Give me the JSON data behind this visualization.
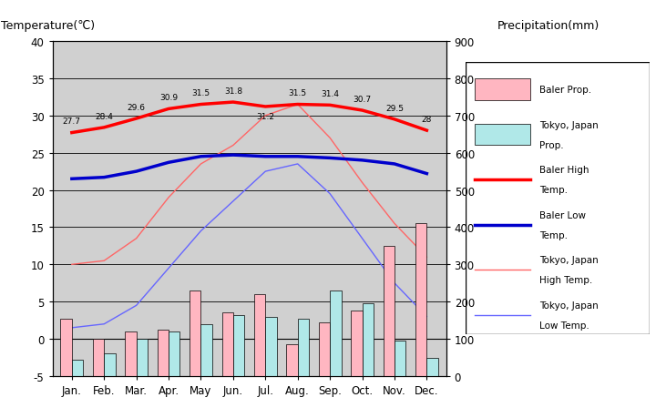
{
  "months": [
    "Jan.",
    "Feb.",
    "Mar.",
    "Apr.",
    "May",
    "Jun.",
    "Jul.",
    "Aug.",
    "Sep.",
    "Oct.",
    "Nov.",
    "Dec."
  ],
  "month_positions": [
    0,
    1,
    2,
    3,
    4,
    5,
    6,
    7,
    8,
    9,
    10,
    11
  ],
  "baler_high_temp": [
    27.7,
    28.4,
    29.6,
    30.9,
    31.5,
    31.8,
    31.2,
    31.5,
    31.4,
    30.7,
    29.5,
    28.0
  ],
  "baler_low_temp": [
    21.5,
    21.7,
    22.5,
    23.7,
    24.5,
    24.7,
    24.5,
    24.5,
    24.3,
    24.0,
    23.5,
    22.2
  ],
  "tokyo_high_temp": [
    10.0,
    10.5,
    13.5,
    19.0,
    23.5,
    26.0,
    30.0,
    31.5,
    27.0,
    21.0,
    15.5,
    11.0
  ],
  "tokyo_low_temp": [
    1.5,
    2.0,
    4.5,
    9.5,
    14.5,
    18.5,
    22.5,
    23.5,
    19.5,
    13.5,
    7.5,
    3.0
  ],
  "baler_precip": [
    155,
    100,
    120,
    125,
    230,
    170,
    220,
    85,
    145,
    175,
    350,
    410
  ],
  "tokyo_precip": [
    45,
    60,
    100,
    120,
    140,
    165,
    160,
    155,
    230,
    195,
    95,
    50
  ],
  "baler_high_color": "#ff0000",
  "baler_low_color": "#0000cc",
  "tokyo_high_color": "#ff6666",
  "tokyo_low_color": "#6666ff",
  "baler_precip_color": "#ffb6c1",
  "tokyo_precip_color": "#b0e8e8",
  "temp_ylim": [
    -5,
    40
  ],
  "precip_ylim": [
    0,
    900
  ],
  "title_left": "Temperature(℃)",
  "title_right": "Precipitation(mm)",
  "bg_color": "#d0d0d0",
  "baler_high_labels": [
    "27.7",
    "28.4",
    "29.6",
    "30.9",
    "31.5",
    "31.8",
    "31.2",
    "31.5",
    "31.4",
    "30.7",
    "29.5",
    "28"
  ],
  "label_offsets_y": [
    1.0,
    1.0,
    1.0,
    1.0,
    1.0,
    1.0,
    -1.8,
    1.0,
    1.0,
    1.0,
    1.0,
    1.0
  ]
}
